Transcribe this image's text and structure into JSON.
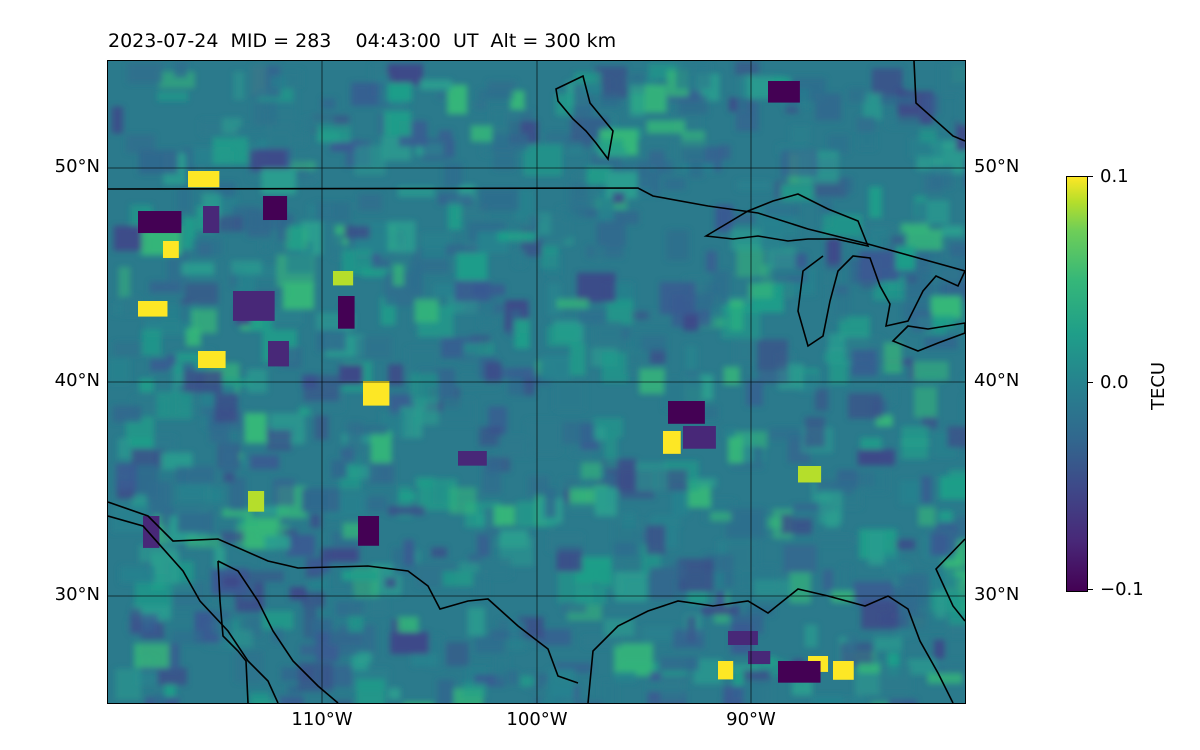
{
  "title": "2023-07-24  MID = 283    04:43:00  UT  Alt = 300 km",
  "map": {
    "region": "Central United States, northern Mexico and Great Lakes",
    "colormap": "viridis",
    "latitude_labels": [
      "50°N",
      "40°N",
      "30°N"
    ],
    "longitude_labels": [
      "110°W",
      "100°W",
      "90°W"
    ],
    "gridlines": true
  },
  "colorbar": {
    "label": "TECU",
    "ticks": [
      "0.1",
      "0.0",
      "−0.1"
    ],
    "min": -0.1,
    "max": 0.1
  },
  "colors": {
    "low": "#440154",
    "mid": "#26828e",
    "high": "#fde725",
    "coastline": "#000000"
  }
}
